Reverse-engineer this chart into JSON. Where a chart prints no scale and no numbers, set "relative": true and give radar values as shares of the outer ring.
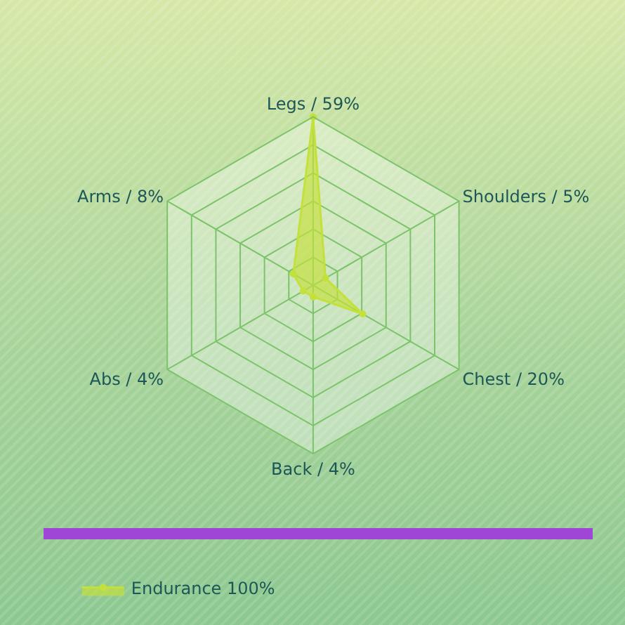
{
  "chart_data": {
    "type": "radar",
    "categories": [
      "Legs / 59%",
      "Shoulders / 5%",
      "Chest / 20%",
      "Back / 4%",
      "Abs / 4%",
      "Arms / 8%"
    ],
    "series": [
      {
        "name": "Endurance 100%",
        "color": "#c4e03a",
        "values": [
          1,
          0.085,
          0.34,
          0.068,
          0.068,
          0.136
        ]
      }
    ],
    "relative": true,
    "grid": true,
    "legend": "bottom left",
    "marker": "circle"
  }
}
